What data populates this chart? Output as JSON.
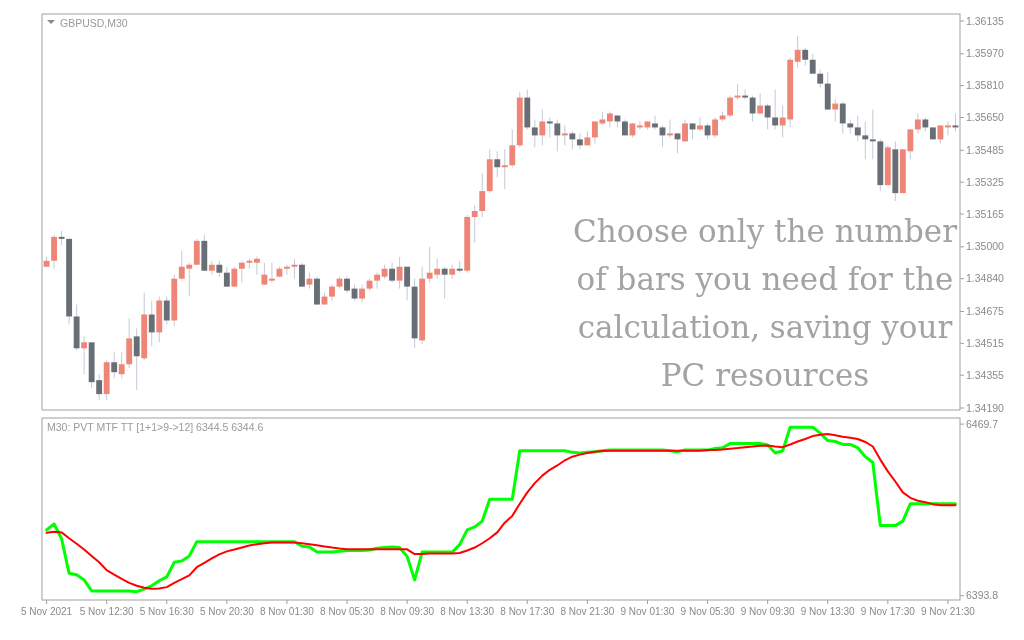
{
  "chart_data": [
    {
      "type": "candlestick",
      "title": "GBPUSD,M30",
      "categories": [
        null,
        null,
        null,
        null,
        null,
        null,
        null,
        null,
        null,
        null,
        null,
        null,
        null,
        null,
        null,
        null,
        null,
        null,
        null,
        null,
        null,
        null,
        null,
        null,
        null,
        null,
        null,
        null,
        null,
        null,
        null,
        null,
        null,
        null,
        null,
        null,
        null,
        null,
        null,
        null,
        null,
        null,
        null,
        null,
        null,
        null,
        null,
        null,
        null,
        null,
        null,
        null,
        null,
        null,
        null,
        null,
        null,
        null,
        null,
        null,
        null,
        null,
        null,
        null,
        null,
        null,
        null,
        null,
        null,
        null,
        null,
        null,
        null,
        null,
        null,
        null,
        null,
        null,
        null,
        null,
        null,
        null,
        null,
        null,
        null,
        null,
        null,
        null,
        null,
        null,
        null,
        null,
        null,
        null,
        null,
        null,
        null,
        null,
        null,
        null,
        null,
        null,
        null,
        null,
        null,
        null,
        null,
        null,
        null,
        null,
        null,
        null,
        null,
        null,
        null,
        null,
        null,
        null,
        null,
        null,
        null,
        null
      ],
      "ohlc": [
        [
          1.349,
          1.3495,
          1.349,
          1.3493
        ],
        [
          1.3493,
          1.3506,
          1.3489,
          1.3505
        ],
        [
          1.3505,
          1.3508,
          1.3501,
          1.3504
        ],
        [
          1.3504,
          1.3504,
          1.3461,
          1.3465
        ],
        [
          1.3465,
          1.3471,
          1.3448,
          1.3449
        ],
        [
          1.3449,
          1.3455,
          1.3436,
          1.3452
        ],
        [
          1.3452,
          1.3452,
          1.3429,
          1.3432
        ],
        [
          1.3433,
          1.3436,
          1.3423,
          1.3426
        ],
        [
          1.3426,
          1.3443,
          1.3423,
          1.3442
        ],
        [
          1.3442,
          1.3447,
          1.3434,
          1.3437
        ],
        [
          1.3436,
          1.3447,
          1.3434,
          1.3441
        ],
        [
          1.3441,
          1.3464,
          1.3439,
          1.3454
        ],
        [
          1.3455,
          1.3459,
          1.3428,
          1.3445
        ],
        [
          1.3444,
          1.3477,
          1.3443,
          1.3466
        ],
        [
          1.3466,
          1.3473,
          1.345,
          1.3457
        ],
        [
          1.3457,
          1.3475,
          1.3452,
          1.3473
        ],
        [
          1.3473,
          1.3475,
          1.3461,
          1.3463
        ],
        [
          1.3463,
          1.3486,
          1.346,
          1.3484
        ],
        [
          1.3484,
          1.3498,
          1.3483,
          1.349
        ],
        [
          1.3489,
          1.3492,
          1.3475,
          1.3491
        ],
        [
          1.3491,
          1.3504,
          1.3491,
          1.3503
        ],
        [
          1.3503,
          1.3506,
          1.3488,
          1.3488
        ],
        [
          1.3488,
          1.3493,
          1.3486,
          1.3491
        ],
        [
          1.3491,
          1.3493,
          1.3485,
          1.3487
        ],
        [
          1.3487,
          1.349,
          1.348,
          1.348
        ],
        [
          1.348,
          1.349,
          1.348,
          1.3489
        ],
        [
          1.3489,
          1.3493,
          1.3482,
          1.3492
        ],
        [
          1.3492,
          1.3494,
          1.3489,
          1.3493
        ],
        [
          1.3492,
          1.3495,
          1.3486,
          1.3494
        ],
        [
          1.3481,
          1.3492,
          1.3481,
          1.3486
        ],
        [
          1.3483,
          1.3492,
          1.3482,
          1.3484
        ],
        [
          1.3485,
          1.349,
          1.3485,
          1.3489
        ],
        [
          1.3489,
          1.3491,
          1.3486,
          1.349
        ],
        [
          1.349,
          1.3494,
          1.3484,
          1.3491
        ],
        [
          1.3491,
          1.3492,
          1.348,
          1.348
        ],
        [
          1.3481,
          1.3487,
          1.3479,
          1.3484
        ],
        [
          1.3484,
          1.3485,
          1.3471,
          1.3471
        ],
        [
          1.3471,
          1.3477,
          1.3471,
          1.3475
        ],
        [
          1.3475,
          1.3481,
          1.3473,
          1.348
        ],
        [
          1.348,
          1.3485,
          1.3479,
          1.3484
        ],
        [
          1.3484,
          1.3485,
          1.3477,
          1.3478
        ],
        [
          1.3479,
          1.3481,
          1.3473,
          1.3474
        ],
        [
          1.3474,
          1.3481,
          1.3472,
          1.3479
        ],
        [
          1.3479,
          1.3484,
          1.3478,
          1.3483
        ],
        [
          1.3483,
          1.3487,
          1.3479,
          1.3486
        ],
        [
          1.3485,
          1.3491,
          1.3484,
          1.3489
        ],
        [
          1.3489,
          1.3492,
          1.3482,
          1.3483
        ],
        [
          1.3483,
          1.3495,
          1.3479,
          1.349
        ],
        [
          1.349,
          1.349,
          1.3473,
          1.348
        ],
        [
          1.348,
          1.3484,
          1.3449,
          1.3454
        ],
        [
          1.3453,
          1.349,
          1.3451,
          1.3484
        ],
        [
          1.3484,
          1.35,
          1.3482,
          1.3487
        ],
        [
          1.3486,
          1.3494,
          1.3484,
          1.3489
        ],
        [
          1.3489,
          1.349,
          1.3474,
          1.3486
        ],
        [
          1.3486,
          1.3491,
          1.3484,
          1.3489
        ],
        [
          1.3489,
          1.3493,
          1.3487,
          1.3488
        ],
        [
          1.3488,
          1.3516,
          1.3487,
          1.3515
        ],
        [
          1.3515,
          1.3521,
          1.3502,
          1.3518
        ],
        [
          1.3518,
          1.3537,
          1.3515,
          1.3528
        ],
        [
          1.3528,
          1.3549,
          1.3527,
          1.3544
        ],
        [
          1.3544,
          1.3548,
          1.3535,
          1.354
        ],
        [
          1.354,
          1.3549,
          1.3529,
          1.3541
        ],
        [
          1.3541,
          1.3559,
          1.354,
          1.3551
        ],
        [
          1.3551,
          1.3578,
          1.355,
          1.3575
        ],
        [
          1.3575,
          1.3579,
          1.3559,
          1.356
        ],
        [
          1.356,
          1.3564,
          1.355,
          1.3556
        ],
        [
          1.3556,
          1.3569,
          1.3551,
          1.3563
        ],
        [
          1.3563,
          1.3565,
          1.3555,
          1.3562
        ],
        [
          1.3562,
          1.3564,
          1.3548,
          1.3556
        ],
        [
          1.3556,
          1.3561,
          1.3551,
          1.3557
        ],
        [
          1.3557,
          1.3558,
          1.3549,
          1.3554
        ],
        [
          1.3554,
          1.3557,
          1.3549,
          1.3551
        ],
        [
          1.3551,
          1.3558,
          1.3551,
          1.3555
        ],
        [
          1.3555,
          1.3563,
          1.3552,
          1.3563
        ],
        [
          1.3562,
          1.3568,
          1.3561,
          1.3564
        ],
        [
          1.3563,
          1.3568,
          1.356,
          1.3567
        ],
        [
          1.3566,
          1.3566,
          1.356,
          1.3563
        ],
        [
          1.3563,
          1.3564,
          1.3556,
          1.3556
        ],
        [
          1.3556,
          1.3562,
          1.3555,
          1.3562
        ],
        [
          1.356,
          1.3563,
          1.3559,
          1.3561
        ],
        [
          1.356,
          1.3563,
          1.3559,
          1.3563
        ],
        [
          1.3562,
          1.3566,
          1.3559,
          1.356
        ],
        [
          1.356,
          1.3561,
          1.355,
          1.3556
        ],
        [
          1.3556,
          1.3564,
          1.3555,
          1.3557
        ],
        [
          1.3557,
          1.3557,
          1.3547,
          1.3554
        ],
        [
          1.3553,
          1.3564,
          1.3553,
          1.3562
        ],
        [
          1.3562,
          1.3562,
          1.3554,
          1.3559
        ],
        [
          1.3559,
          1.3565,
          1.3558,
          1.3561
        ],
        [
          1.3561,
          1.3562,
          1.3554,
          1.3556
        ],
        [
          1.3556,
          1.3565,
          1.3555,
          1.3564
        ],
        [
          1.3564,
          1.3568,
          1.3563,
          1.3566
        ],
        [
          1.3566,
          1.3576,
          1.3565,
          1.3575
        ],
        [
          1.3575,
          1.3582,
          1.3574,
          1.3576
        ],
        [
          1.3576,
          1.3579,
          1.3574,
          1.3575
        ],
        [
          1.3575,
          1.3576,
          1.3563,
          1.3567
        ],
        [
          1.3567,
          1.3577,
          1.3567,
          1.3571
        ],
        [
          1.3571,
          1.3572,
          1.3559,
          1.3565
        ],
        [
          1.3565,
          1.3579,
          1.3559,
          1.3561
        ],
        [
          1.3561,
          1.3571,
          1.3555,
          1.3565
        ],
        [
          1.3564,
          1.3595,
          1.356,
          1.3594
        ],
        [
          1.3593,
          1.3606,
          1.359,
          1.3599
        ],
        [
          1.3599,
          1.36,
          1.3591,
          1.3594
        ],
        [
          1.3594,
          1.3597,
          1.3587,
          1.3587
        ],
        [
          1.3587,
          1.3589,
          1.358,
          1.3582
        ],
        [
          1.3582,
          1.3588,
          1.3569,
          1.3569
        ],
        [
          1.3569,
          1.3574,
          1.3563,
          1.3572
        ],
        [
          1.3572,
          1.3573,
          1.3557,
          1.3562
        ],
        [
          1.3562,
          1.3564,
          1.3557,
          1.356
        ],
        [
          1.356,
          1.3566,
          1.3553,
          1.3556
        ],
        [
          1.3556,
          1.3563,
          1.3544,
          1.3554
        ],
        [
          1.3554,
          1.3569,
          1.3544,
          1.3553
        ],
        [
          1.3553,
          1.3554,
          1.3528,
          1.3531
        ],
        [
          1.3531,
          1.3551,
          1.3531,
          1.355
        ],
        [
          1.3549,
          1.3553,
          1.3523,
          1.3527
        ],
        [
          1.3527,
          1.3549,
          1.3527,
          1.3549
        ],
        [
          1.3548,
          1.3559,
          1.3544,
          1.3559
        ],
        [
          1.3559,
          1.3567,
          1.3557,
          1.3564
        ],
        [
          1.3564,
          1.3565,
          1.3558,
          1.356
        ],
        [
          1.356,
          1.356,
          1.3554,
          1.3554
        ],
        [
          1.3554,
          1.3561,
          1.3552,
          1.3561
        ],
        [
          1.356,
          1.3563,
          1.3556,
          1.3561
        ],
        [
          1.3561,
          1.3567,
          1.3558,
          1.356
        ]
      ],
      "colors": [
        "#ee8576",
        "#ee8576",
        "#686e76",
        "#686e76",
        "#686e76",
        "#ee8576",
        "#686e76",
        "#686e76",
        "#ee8576",
        "#686e76",
        "#ee8576",
        "#ee8576",
        "#686e76",
        "#ee8576",
        "#686e76",
        "#ee8576",
        "#686e76",
        "#ee8576",
        "#ee8576",
        "#ee8576",
        "#ee8576",
        "#686e76",
        "#ee8576",
        "#686e76",
        "#686e76",
        "#ee8576",
        "#ee8576",
        "#ee8576",
        "#ee8576",
        "#ee8576",
        "#ee8576",
        "#ee8576",
        "#ee8576",
        "#ee8576",
        "#686e76",
        "#ee8576",
        "#686e76",
        "#ee8576",
        "#ee8576",
        "#ee8576",
        "#686e76",
        "#686e76",
        "#ee8576",
        "#ee8576",
        "#ee8576",
        "#ee8576",
        "#686e76",
        "#ee8576",
        "#686e76",
        "#686e76",
        "#ee8576",
        "#ee8576",
        "#ee8576",
        "#686e76",
        "#ee8576",
        "#686e76",
        "#ee8576",
        "#ee8576",
        "#ee8576",
        "#ee8576",
        "#686e76",
        "#ee8576",
        "#ee8576",
        "#ee8576",
        "#686e76",
        "#686e76",
        "#ee8576",
        "#686e76",
        "#686e76",
        "#ee8576",
        "#686e76",
        "#686e76",
        "#ee8576",
        "#ee8576",
        "#ee8576",
        "#ee8576",
        "#686e76",
        "#686e76",
        "#ee8576",
        "#ee8576",
        "#ee8576",
        "#686e76",
        "#686e76",
        "#ee8576",
        "#686e76",
        "#ee8576",
        "#686e76",
        "#ee8576",
        "#686e76",
        "#ee8576",
        "#ee8576",
        "#ee8576",
        "#ee8576",
        "#686e76",
        "#686e76",
        "#ee8576",
        "#686e76",
        "#686e76",
        "#ee8576",
        "#ee8576",
        "#ee8576",
        "#686e76",
        "#686e76",
        "#686e76",
        "#686e76",
        "#ee8576",
        "#686e76",
        "#686e76",
        "#686e76",
        "#686e76",
        "#686e76",
        "#686e76",
        "#ee8576",
        "#686e76",
        "#ee8576",
        "#ee8576",
        "#ee8576",
        "#686e76",
        "#686e76",
        "#ee8576",
        "#ee8576",
        "#686e76"
      ],
      "ylim": [
        1.3418,
        1.3617
      ],
      "yticks": [
        {
          "value": 1.36135,
          "label": "1.36135"
        },
        {
          "value": 1.3597,
          "label": "1.35970"
        },
        {
          "value": 1.3581,
          "label": "1.35810"
        },
        {
          "value": 1.3565,
          "label": "1.35650"
        },
        {
          "value": 1.35485,
          "label": "1.35485"
        },
        {
          "value": 1.35325,
          "label": "1.35325"
        },
        {
          "value": 1.35165,
          "label": "1.35165"
        },
        {
          "value": 1.35,
          "label": "1.35000"
        },
        {
          "value": 1.3484,
          "label": "1.34840"
        },
        {
          "value": 1.34675,
          "label": "1.34675"
        },
        {
          "value": 1.34515,
          "label": "1.34515"
        },
        {
          "value": 1.34355,
          "label": "1.34355"
        },
        {
          "value": 1.3419,
          "label": "1.34190"
        }
      ],
      "tick_labels": "y",
      "annotations": [
        "Choose only the number of bars you need for the calculation, saving your PC resources"
      ]
    },
    {
      "type": "line",
      "title": "M30: PVT MTF TT [1+1>9->12] 6344.5 6344.6",
      "categories": [
        "5 Nov 2021",
        null,
        null,
        null,
        null,
        null,
        null,
        null,
        "5 Nov 12:30",
        null,
        null,
        null,
        null,
        null,
        null,
        null,
        "5 Nov 16:30",
        null,
        null,
        null,
        null,
        null,
        null,
        null,
        "5 Nov 20:30",
        null,
        null,
        null,
        null,
        null,
        null,
        null,
        "8 Nov 01:30",
        null,
        null,
        null,
        null,
        null,
        null,
        null,
        "8 Nov 05:30",
        null,
        null,
        null,
        null,
        null,
        null,
        null,
        "8 Nov 09:30",
        null,
        null,
        null,
        null,
        null,
        null,
        null,
        "8 Nov 13:30",
        null,
        null,
        null,
        null,
        null,
        null,
        null,
        "8 Nov 17:30",
        null,
        null,
        null,
        null,
        null,
        null,
        null,
        "8 Nov 21:30",
        null,
        null,
        null,
        null,
        null,
        null,
        null,
        "9 Nov 01:30",
        null,
        null,
        null,
        null,
        null,
        null,
        null,
        "9 Nov 05:30",
        null,
        null,
        null,
        null,
        null,
        null,
        null,
        "9 Nov 09:30",
        null,
        null,
        null,
        null,
        null,
        null,
        null,
        "9 Nov 13:30",
        null,
        null,
        null,
        null,
        null,
        null,
        null,
        "9 Nov 17:30",
        null,
        null,
        null,
        null,
        null,
        null,
        null,
        "9 Nov 21:30",
        null
      ],
      "series": [
        {
          "color": "#00ff00",
          "values": [
            6422.9,
            6425.5,
            6419.0,
            6403.7,
            6403.1,
            6400.8,
            6395.9,
            6395.9,
            6395.9,
            6395.9,
            6395.9,
            6395.9,
            6395.6,
            6396.7,
            6398.2,
            6400.4,
            6402.1,
            6408.6,
            6409.2,
            6411.4,
            6417.7,
            6417.7,
            6417.7,
            6417.7,
            6417.7,
            6417.7,
            6417.7,
            6417.7,
            6417.7,
            6417.7,
            6417.7,
            6417.7,
            6417.7,
            6417.7,
            6415.7,
            6415.3,
            6413.1,
            6413.1,
            6413.1,
            6413.5,
            6413.8,
            6413.8,
            6413.8,
            6414.0,
            6414.8,
            6415.1,
            6415.3,
            6415.1,
            6411.2,
            6400.8,
            6413.1,
            6413.1,
            6413.1,
            6413.1,
            6413.1,
            6416.4,
            6422.9,
            6424.2,
            6426.8,
            6436.5,
            6436.5,
            6436.5,
            6436.5,
            6457.9,
            6457.9,
            6457.9,
            6457.9,
            6457.9,
            6457.9,
            6457.9,
            6457.2,
            6456.9,
            6457.2,
            6457.5,
            6457.9,
            6458.3,
            6458.3,
            6458.3,
            6458.3,
            6458.3,
            6458.3,
            6458.2,
            6458.2,
            6457.9,
            6457.5,
            6458.3,
            6458.3,
            6458.3,
            6458.2,
            6458.9,
            6459.2,
            6461.1,
            6461.1,
            6461.1,
            6461.1,
            6461.1,
            6460.5,
            6456.9,
            6457.9,
            6468.3,
            6468.3,
            6468.3,
            6468.3,
            6465.7,
            6462.4,
            6462.0,
            6460.7,
            6460.7,
            6459.2,
            6455.3,
            6452.7,
            6424.8,
            6424.8,
            6424.8,
            6426.8,
            6434.5,
            6434.5,
            6434.5,
            6434.5,
            6434.5,
            6434.5,
            6434.5
          ]
        },
        {
          "color": "#ff0000",
          "values": [
            6421.6,
            6422.1,
            6421.8,
            6419.2,
            6416.8,
            6414.2,
            6411.4,
            6408.6,
            6405.1,
            6403.1,
            6401.2,
            6399.5,
            6398.2,
            6397.3,
            6396.9,
            6397.0,
            6397.6,
            6399.5,
            6401.1,
            6402.8,
            6406.4,
            6408.3,
            6410.3,
            6412.1,
            6413.4,
            6414.2,
            6415.1,
            6416.0,
            6416.6,
            6417.0,
            6417.3,
            6417.3,
            6417.3,
            6417.3,
            6417.0,
            6416.6,
            6416.1,
            6415.6,
            6415.1,
            6414.7,
            6414.4,
            6414.4,
            6414.4,
            6414.4,
            6414.4,
            6414.4,
            6414.4,
            6414.4,
            6414.3,
            6412.2,
            6412.2,
            6412.5,
            6412.5,
            6412.5,
            6412.5,
            6412.7,
            6413.8,
            6415.1,
            6417.0,
            6419.2,
            6421.8,
            6426.1,
            6429.1,
            6434.5,
            6439.5,
            6443.6,
            6446.9,
            6449.5,
            6451.4,
            6453.7,
            6455.3,
            6456.2,
            6456.9,
            6457.5,
            6457.8,
            6457.9,
            6457.9,
            6457.9,
            6457.9,
            6457.9,
            6457.9,
            6457.9,
            6457.9,
            6457.9,
            6457.9,
            6457.9,
            6457.9,
            6457.9,
            6458.2,
            6458.3,
            6458.5,
            6458.8,
            6459.1,
            6459.5,
            6459.8,
            6460.1,
            6460.2,
            6459.8,
            6459.5,
            6460.7,
            6462.0,
            6463.1,
            6464.4,
            6465.0,
            6465.3,
            6464.8,
            6464.1,
            6463.7,
            6463.1,
            6461.8,
            6459.8,
            6454.0,
            6448.8,
            6444.3,
            6439.5,
            6437.1,
            6435.8,
            6435.1,
            6434.3,
            6433.8,
            6433.8,
            6433.8
          ]
        }
      ],
      "ylim": [
        6391.9,
        6472.4
      ],
      "yticks": [
        6393.8,
        6469.7
      ]
    }
  ]
}
